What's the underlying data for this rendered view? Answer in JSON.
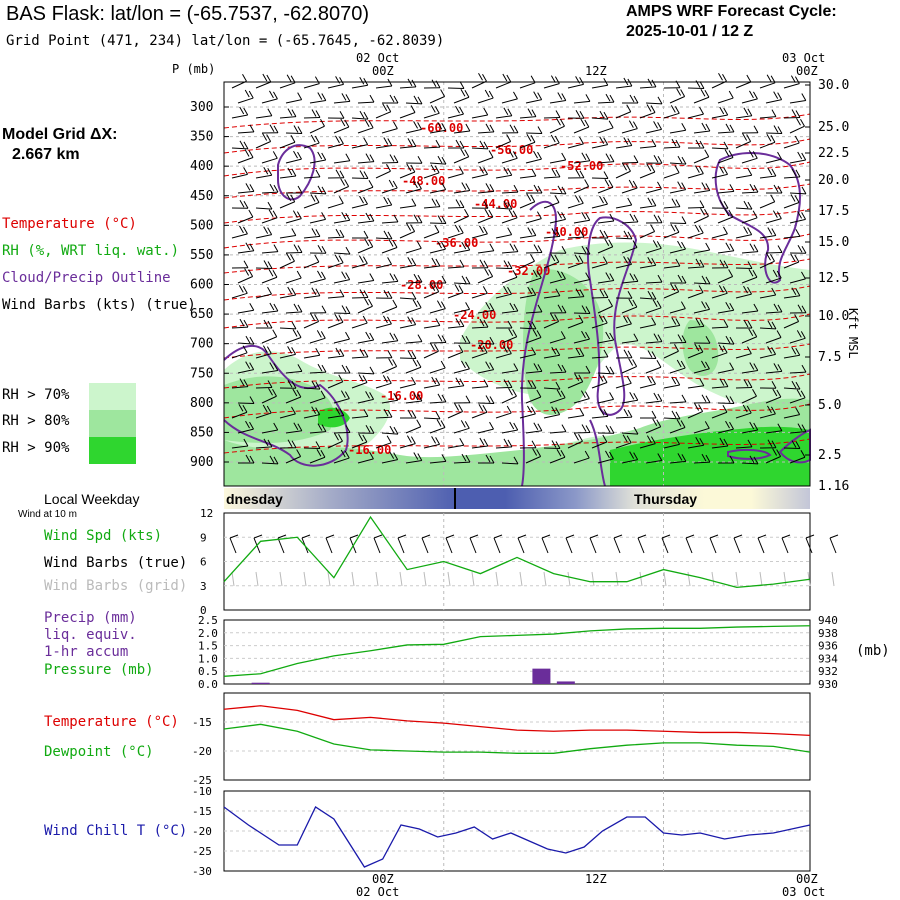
{
  "header": {
    "title": "BAS Flask:  lat/lon = (-65.7537, -62.8070)",
    "subtitle": "Grid Point (471, 234) lat/lon = (-65.7645, -62.8039)",
    "cycle_label": "AMPS WRF Forecast Cycle:",
    "cycle_value": "2025-10-01 / 12  Z"
  },
  "side": {
    "grid_label": "Model Grid ΔX:",
    "grid_value": "2.667 km",
    "legend_temp": "Temperature (°C)",
    "legend_rh": "RH (%, WRT liq. wat.)",
    "legend_cloud": "Cloud/Precip Outline",
    "legend_wind": "Wind Barbs (kts) (true)",
    "rh70": "RH > 70%",
    "rh80": "RH > 80%",
    "rh90": "RH > 90%",
    "colors": {
      "temperature": "#dd0000",
      "rh": "#11aa11",
      "cloud": "#6a2d9a",
      "rh70": "#ccf5cc",
      "rh80": "#9ee69e",
      "rh90": "#2fd62f"
    }
  },
  "time_axis": {
    "top_dates": [
      "02 Oct",
      "",
      "03 Oct"
    ],
    "top_hours": [
      "00Z",
      "12Z",
      "00Z"
    ],
    "bottom_hours": [
      "00Z",
      "12Z",
      "00Z"
    ],
    "bottom_dates": [
      "02 Oct",
      "",
      "03 Oct"
    ]
  },
  "weekday": {
    "label": "Local Weekday",
    "sub": "Wind at 10 m",
    "left_day": "dnesday",
    "right_day": "Thursday"
  },
  "chart_data": [
    {
      "type": "heatmap",
      "name": "Time-height cross section",
      "y_left_title": "P (mb)",
      "y_right_title": "Kft MSL",
      "pressure_ticks": [
        300,
        350,
        400,
        450,
        500,
        550,
        600,
        650,
        700,
        750,
        800,
        850,
        900
      ],
      "height_ticks": [
        "30.0",
        "25.0",
        "22.5",
        "20.0",
        "17.5",
        "15.0",
        "12.5",
        "10.0",
        "7.5",
        "5.0",
        "2.5",
        "1.16"
      ],
      "temperature_labels": [
        "-60.00",
        "-56.00",
        "-52.00",
        "-48.00",
        "-44.00",
        "-40.00",
        "-36.00",
        "-32.00",
        "-28.00",
        "-24.00",
        "-20.00",
        "-16.00",
        "-16.00"
      ]
    },
    {
      "type": "line",
      "name": "Wind",
      "ylim": [
        0,
        12
      ],
      "yticks": [
        0,
        3,
        6,
        9,
        12
      ],
      "legend": [
        "Wind Spd (kts)",
        "Wind Barbs (true)",
        "Wind Barbs (grid)"
      ],
      "series": [
        {
          "name": "Wind Spd (kts)",
          "x": [
            0,
            3,
            6,
            9,
            12,
            15,
            18,
            21,
            24,
            27,
            30,
            33,
            36,
            39,
            42,
            45,
            48
          ],
          "values": [
            3.5,
            8.5,
            9,
            4,
            11.5,
            5,
            6,
            4.5,
            6.5,
            4.5,
            3.5,
            3.5,
            5,
            4,
            2.8,
            3.2,
            3.8
          ]
        }
      ]
    },
    {
      "type": "bar",
      "name": "Precip / Pressure",
      "legend": [
        "Precip (mm)",
        "liq. equiv.",
        "1-hr accum",
        "Pressure (mb)"
      ],
      "ylim_left": [
        0,
        2.5
      ],
      "yticks_left": [
        "2.5",
        "2.0",
        "1.5",
        "1.0",
        "0.5",
        "0.0"
      ],
      "ylim_right": [
        930,
        940
      ],
      "yticks_right": [
        "940",
        "938",
        "936",
        "934",
        "932",
        "930"
      ],
      "right_unit": "(mb)",
      "precip": {
        "x": [
          3,
          26,
          28
        ],
        "values": [
          0.05,
          0.6,
          0.1
        ]
      },
      "pressure": {
        "x": [
          0,
          3,
          6,
          9,
          12,
          15,
          18,
          21,
          24,
          27,
          30,
          33,
          36,
          39,
          42,
          45,
          48
        ],
        "values": [
          931.2,
          931.6,
          933.2,
          934.4,
          935.2,
          936.1,
          936.2,
          937.4,
          937.6,
          937.8,
          938.3,
          938.6,
          938.7,
          938.7,
          938.9,
          939.0,
          939.1
        ]
      }
    },
    {
      "type": "line",
      "name": "Temperature / Dewpoint",
      "ylim": [
        -25,
        -10
      ],
      "yticks": [
        -15,
        -20,
        -25
      ],
      "series": [
        {
          "name": "Temperature (°C)",
          "color": "#dd0000",
          "x": [
            0,
            3,
            6,
            9,
            12,
            15,
            18,
            21,
            24,
            27,
            30,
            33,
            36,
            39,
            42,
            45,
            48
          ],
          "values": [
            -12.8,
            -12.2,
            -13.0,
            -14.6,
            -14.2,
            -14.8,
            -15.2,
            -15.8,
            -16.4,
            -16.6,
            -16.4,
            -16.4,
            -16.6,
            -16.8,
            -16.8,
            -17.0,
            -17.3
          ]
        },
        {
          "name": "Dewpoint (°C)",
          "color": "#11aa11",
          "x": [
            0,
            3,
            6,
            9,
            12,
            15,
            18,
            21,
            24,
            27,
            30,
            33,
            36,
            39,
            42,
            45,
            48
          ],
          "values": [
            -16.2,
            -15.4,
            -16.6,
            -18.8,
            -19.8,
            -20.0,
            -20.2,
            -20.2,
            -20.4,
            -20.4,
            -19.6,
            -19.0,
            -18.6,
            -18.6,
            -19.0,
            -19.2,
            -20.2
          ]
        }
      ]
    },
    {
      "type": "line",
      "name": "Wind Chill",
      "ylim": [
        -30,
        -10
      ],
      "yticks": [
        -10,
        -15,
        -20,
        -25,
        -30
      ],
      "series": [
        {
          "name": "Wind Chill T (°C)",
          "color": "#1a1aaa",
          "x": [
            0,
            2,
            4.5,
            6,
            7.5,
            9,
            11.5,
            13,
            14.5,
            16,
            17.5,
            19,
            20.5,
            22,
            23.5,
            25,
            26.5,
            28,
            29.5,
            31,
            33,
            34.5,
            36,
            37.5,
            39,
            41,
            43,
            45,
            48
          ],
          "values": [
            -14,
            -18.5,
            -23.5,
            -23.5,
            -14,
            -17,
            -29,
            -27,
            -18.5,
            -19.5,
            -21.5,
            -20.5,
            -19,
            -22,
            -20.5,
            -22.5,
            -24.5,
            -25.5,
            -24,
            -20,
            -16.5,
            -16.5,
            -20.5,
            -21,
            -20.5,
            -22,
            -21,
            -20.5,
            -18.5
          ]
        }
      ]
    }
  ]
}
